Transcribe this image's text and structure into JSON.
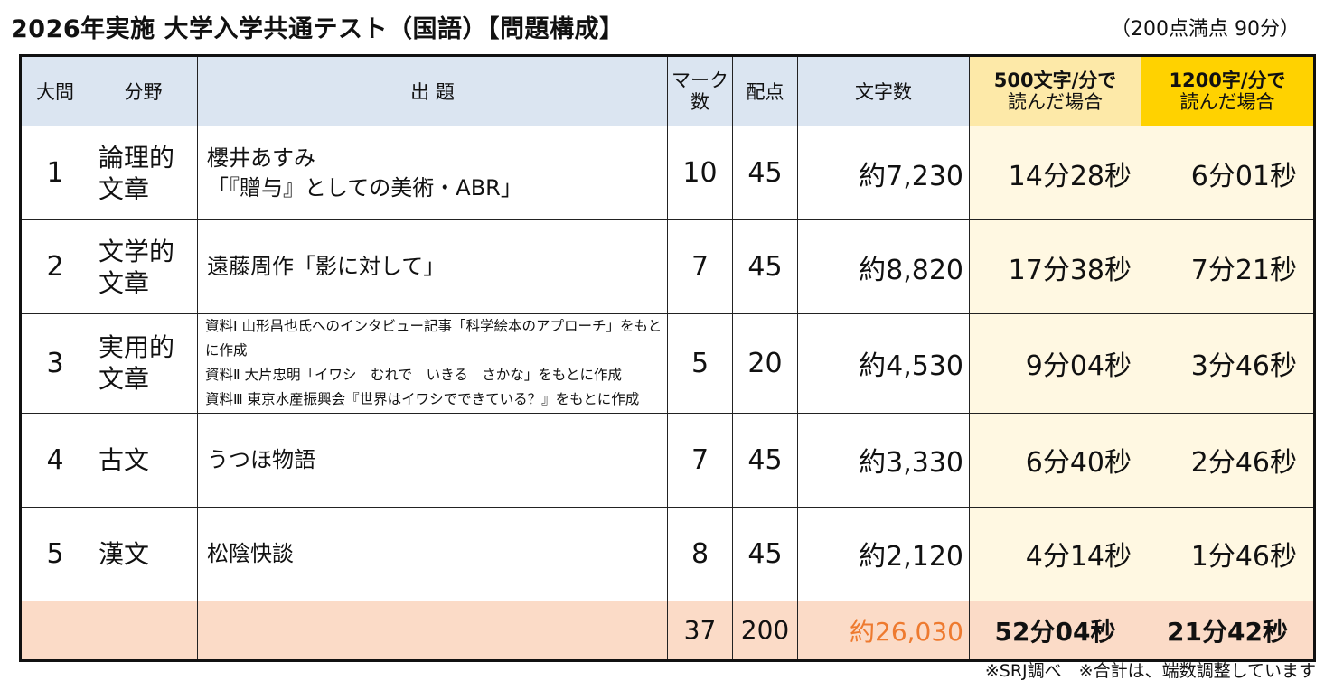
{
  "title": "2026年実施 大学入学共通テスト（国語）【問題構成】",
  "subtitle": "（200点満点 90分）",
  "headers": {
    "q": "大問",
    "field": "分野",
    "source": "出 題",
    "marks_line1": "マーク",
    "marks_line2": "数",
    "score": "配点",
    "chars": "文字数",
    "speed500_line1": "500文字/分で",
    "speed500_line2": "読んだ場合",
    "speed1200_line1": "1200字/分で",
    "speed1200_line2": "読んだ場合"
  },
  "rows": [
    {
      "q": "1",
      "field_line1": "論理的",
      "field_line2": "文章",
      "source_lines": [
        "櫻井あすみ",
        "「『贈与』としての美術・ABR」"
      ],
      "marks": "10",
      "score": "45",
      "chars": "約7,230",
      "time500": "14分28秒",
      "time1200": "6分01秒"
    },
    {
      "q": "2",
      "field_line1": "文学的",
      "field_line2": "文章",
      "source_lines": [
        "遠藤周作「影に対して」"
      ],
      "marks": "7",
      "score": "45",
      "chars": "約8,820",
      "time500": "17分38秒",
      "time1200": "7分21秒"
    },
    {
      "q": "3",
      "field_line1": "実用的",
      "field_line2": "文章",
      "source_lines": [
        "資料Ⅰ 山形昌也氏へのインタビュー記事「科学絵本のアプローチ」をもとに作成",
        "資料Ⅱ 大片忠明「イワシ　むれで　いきる　さかな」をもとに作成",
        "資料Ⅲ 東京水産振興会『世界はイワシでできている？』をもとに作成"
      ],
      "marks": "5",
      "score": "20",
      "chars": "約4,530",
      "time500": "9分04秒",
      "time1200": "3分46秒"
    },
    {
      "q": "4",
      "field_line1": "古文",
      "field_line2": "",
      "source_lines": [
        "うつほ物語"
      ],
      "marks": "7",
      "score": "45",
      "chars": "約3,330",
      "time500": "6分40秒",
      "time1200": "2分46秒"
    },
    {
      "q": "5",
      "field_line1": "漢文",
      "field_line2": "",
      "source_lines": [
        "松陰快談"
      ],
      "marks": "8",
      "score": "45",
      "chars": "約2,120",
      "time500": "4分14秒",
      "time1200": "1分46秒"
    }
  ],
  "totals": {
    "marks": "37",
    "score": "200",
    "chars": "約26,030",
    "time500": "52分04秒",
    "time1200": "21分42秒"
  },
  "footnote": "※SRJ調べ　※合計は、端数調整しています",
  "colors": {
    "header_bg": "#dbe5f1",
    "header_500_bg": "#fde9a8",
    "header_1200_bg": "#ffd200",
    "time_col_bg": "#fff8e2",
    "total_row_bg": "#fbdbc7",
    "total_chars_text": "#ee7a2f"
  }
}
